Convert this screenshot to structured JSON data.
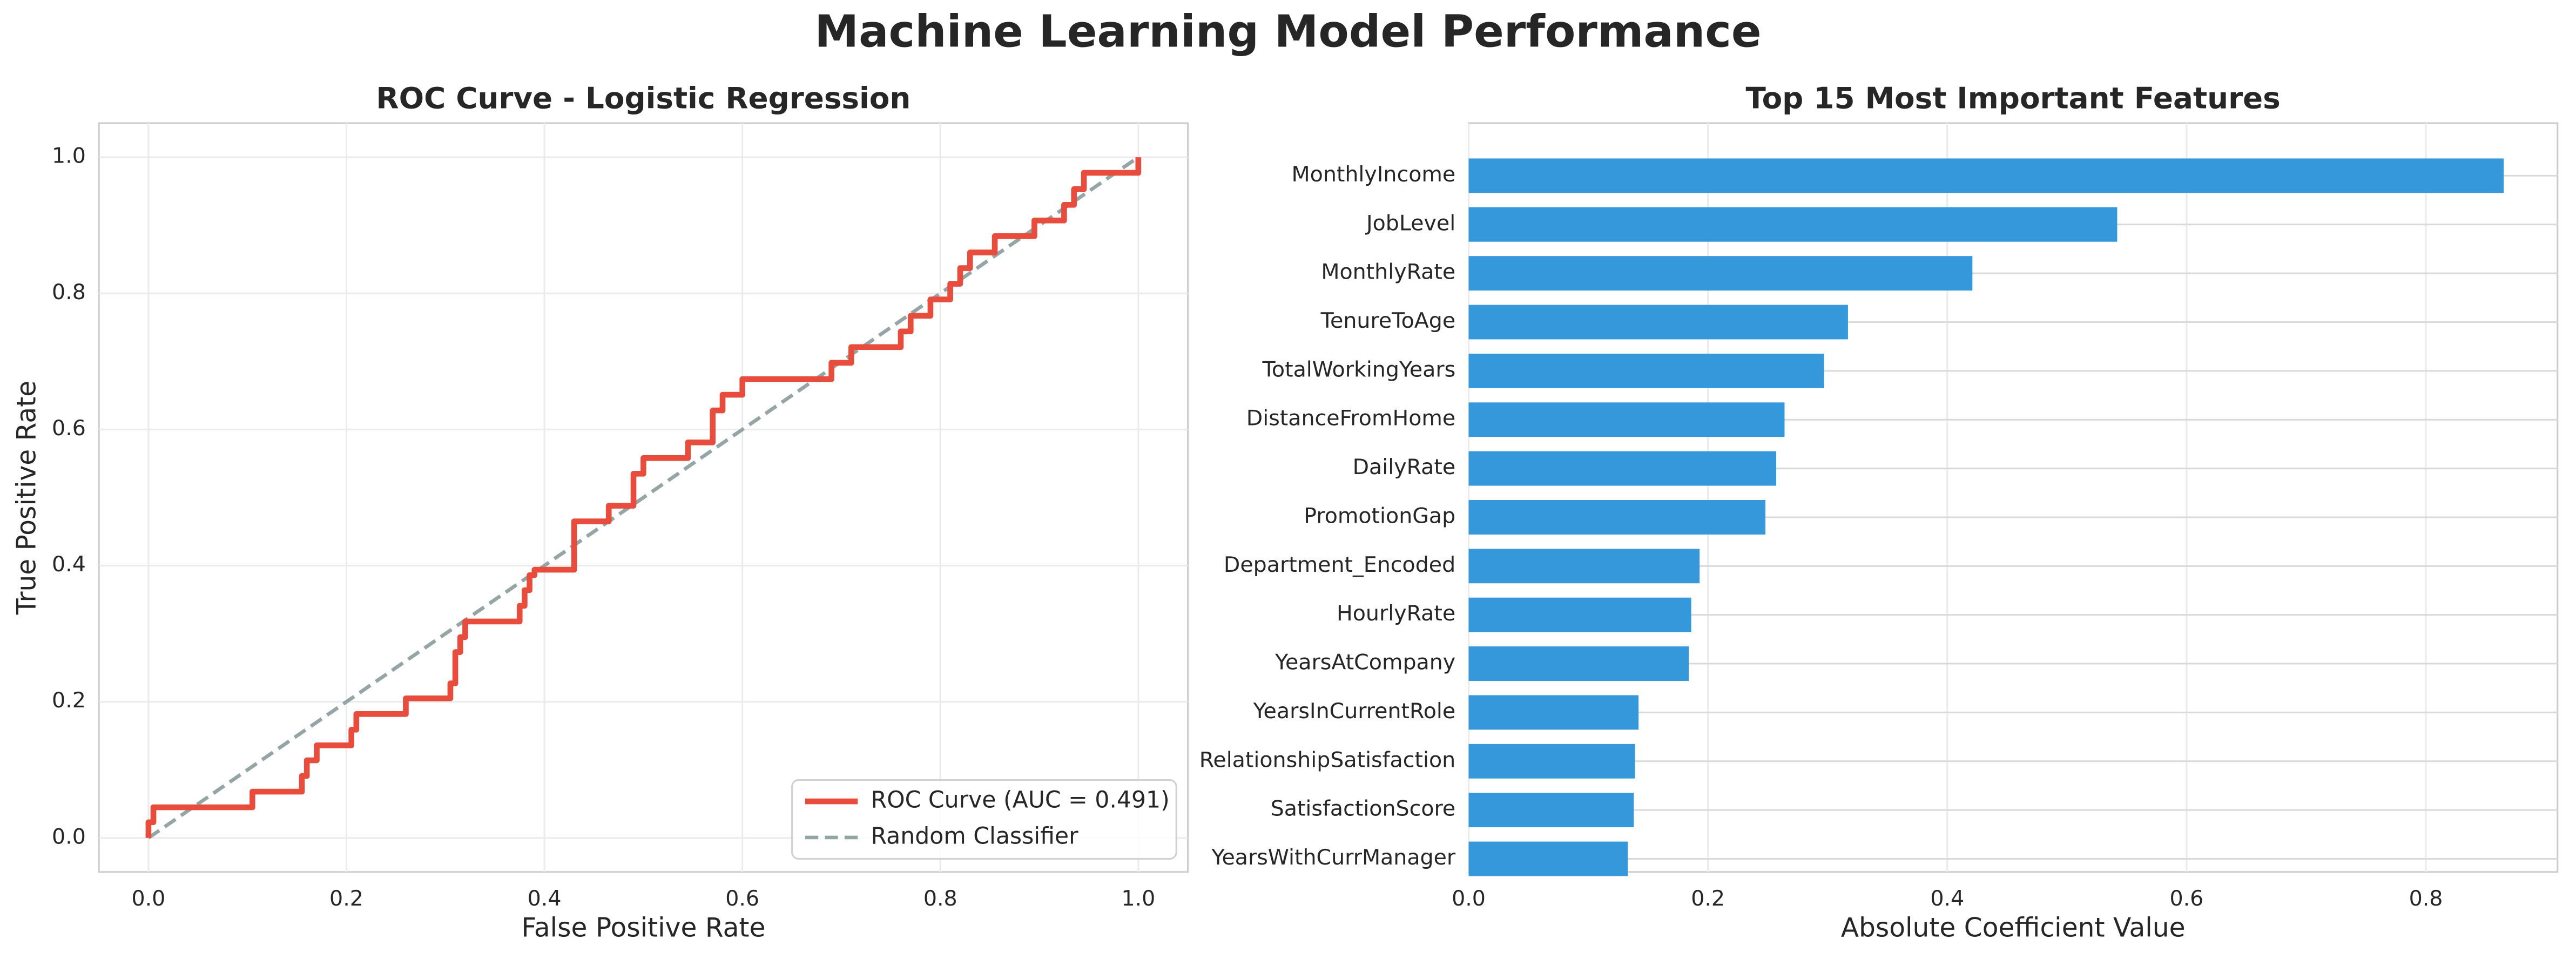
{
  "title": "Machine Learning Model Performance",
  "chart_data": [
    {
      "type": "line",
      "title": "ROC Curve - Logistic Regression",
      "xlabel": "False Positive Rate",
      "ylabel": "True Positive Rate",
      "xlim": [
        -0.05,
        1.05
      ],
      "ylim": [
        -0.05,
        1.05
      ],
      "xticks": [
        {
          "value": 0,
          "label": "0.0"
        },
        0.2,
        0.4,
        0.6,
        0.8,
        {
          "value": 1,
          "label": "1.0"
        }
      ],
      "yticks": [
        {
          "value": 0,
          "label": "0.0"
        },
        0.2,
        0.4,
        0.6,
        0.8,
        {
          "value": 1,
          "label": "1.0"
        }
      ],
      "grid": true,
      "legend": "lower right",
      "series": [
        {
          "name": "ROC Curve (AUC = 0.491)",
          "color": "#e74c3c",
          "linestyle": "solid",
          "x": [
            0,
            0,
            0.005,
            0.005,
            0.105,
            0.105,
            0.155,
            0.155,
            0.16,
            0.16,
            0.17,
            0.17,
            0.205,
            0.205,
            0.21,
            0.21,
            0.26,
            0.26,
            0.305,
            0.305,
            0.31,
            0.31,
            0.315,
            0.315,
            0.32,
            0.32,
            0.375,
            0.375,
            0.38,
            0.38,
            0.385,
            0.385,
            0.39,
            0.39,
            0.43,
            0.43,
            0.465,
            0.465,
            0.49,
            0.49,
            0.5,
            0.5,
            0.545,
            0.545,
            0.57,
            0.57,
            0.58,
            0.58,
            0.6,
            0.6,
            0.69,
            0.69,
            0.71,
            0.71,
            0.76,
            0.76,
            0.77,
            0.77,
            0.79,
            0.79,
            0.81,
            0.81,
            0.82,
            0.82,
            0.83,
            0.83,
            0.855,
            0.855,
            0.895,
            0.895,
            0.925,
            0.925,
            0.935,
            0.935,
            0.945,
            0.945,
            1,
            1
          ],
          "values": [
            0,
            0.023,
            0.023,
            0.045,
            0.045,
            0.068,
            0.068,
            0.091,
            0.091,
            0.114,
            0.114,
            0.136,
            0.136,
            0.159,
            0.159,
            0.182,
            0.182,
            0.205,
            0.205,
            0.227,
            0.227,
            0.273,
            0.273,
            0.295,
            0.295,
            0.318,
            0.318,
            0.341,
            0.341,
            0.364,
            0.364,
            0.386,
            0.386,
            0.394,
            0.394,
            0.465,
            0.465,
            0.488,
            0.488,
            0.535,
            0.535,
            0.558,
            0.558,
            0.581,
            0.581,
            0.628,
            0.628,
            0.651,
            0.651,
            0.674,
            0.674,
            0.698,
            0.698,
            0.721,
            0.721,
            0.744,
            0.744,
            0.767,
            0.767,
            0.791,
            0.791,
            0.814,
            0.814,
            0.837,
            0.837,
            0.86,
            0.86,
            0.884,
            0.884,
            0.907,
            0.907,
            0.93,
            0.93,
            0.953,
            0.953,
            0.977,
            0.977,
            1
          ]
        },
        {
          "name": "Random Classifier",
          "color": "#95a5a6",
          "linestyle": "dashed",
          "x": [
            0,
            1
          ],
          "values": [
            0,
            1
          ]
        }
      ]
    },
    {
      "type": "barh",
      "title": "Top 15 Most Important Features",
      "xlabel": "Absolute Coefficient Value",
      "categories": [
        "MonthlyIncome",
        "JobLevel",
        "MonthlyRate",
        "TenureToAge",
        "TotalWorkingYears",
        "DistanceFromHome",
        "DailyRate",
        "PromotionGap",
        "Department_Encoded",
        "HourlyRate",
        "YearsAtCompany",
        "YearsInCurrentRole",
        "RelationshipSatisfaction",
        "SatisfactionScore",
        "YearsWithCurrManager"
      ],
      "values": [
        0.865,
        0.542,
        0.421,
        0.317,
        0.297,
        0.264,
        0.257,
        0.248,
        0.193,
        0.186,
        0.184,
        0.142,
        0.139,
        0.138,
        0.133
      ],
      "color": "#3498db",
      "xlim": [
        0,
        0.91
      ],
      "xticks": [
        {
          "value": 0,
          "label": "0.0"
        },
        0.2,
        0.4,
        0.6,
        0.8
      ],
      "grid": true
    }
  ]
}
